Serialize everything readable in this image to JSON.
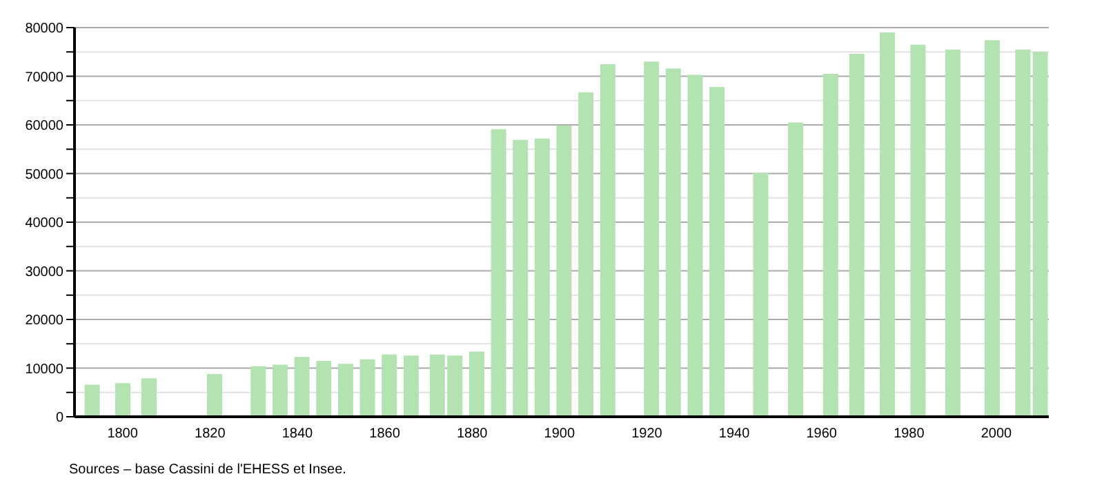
{
  "chart_data": {
    "type": "bar",
    "x": [
      1793,
      1800,
      1806,
      1821,
      1831,
      1836,
      1841,
      1846,
      1851,
      1856,
      1861,
      1866,
      1872,
      1876,
      1881,
      1886,
      1891,
      1896,
      1901,
      1906,
      1911,
      1921,
      1926,
      1931,
      1936,
      1946,
      1954,
      1962,
      1968,
      1975,
      1982,
      1990,
      1999,
      2006,
      2010
    ],
    "values": [
      6600,
      6900,
      7900,
      8800,
      10400,
      10700,
      12300,
      11500,
      10900,
      11800,
      12800,
      12600,
      12800,
      12600,
      13400,
      59100,
      56900,
      57200,
      59900,
      66700,
      72500,
      73000,
      71600,
      70300,
      67800,
      50100,
      60500,
      70500,
      74600,
      79000,
      76500,
      75500,
      77400,
      75500,
      75000
    ],
    "color": "#b3e3b1",
    "xlim": [
      1789,
      2012
    ],
    "xticks": [
      1800,
      1820,
      1840,
      1860,
      1880,
      1900,
      1920,
      1940,
      1960,
      1980,
      2000
    ],
    "ylim": [
      0,
      80000
    ],
    "yticks": [
      0,
      {
        "value": 5000,
        "label": null
      },
      10000,
      {
        "value": 15000,
        "label": null
      },
      20000,
      {
        "value": 25000,
        "label": null
      },
      30000,
      {
        "value": 35000,
        "label": null
      },
      40000,
      {
        "value": 45000,
        "label": null
      },
      50000,
      {
        "value": 55000,
        "label": null
      },
      60000,
      {
        "value": 65000,
        "label": null
      },
      70000,
      {
        "value": 75000,
        "label": null
      },
      80000
    ],
    "grid": "y",
    "annotations": [
      "Sources – base Cassini de l'EHESS et Insee."
    ]
  }
}
